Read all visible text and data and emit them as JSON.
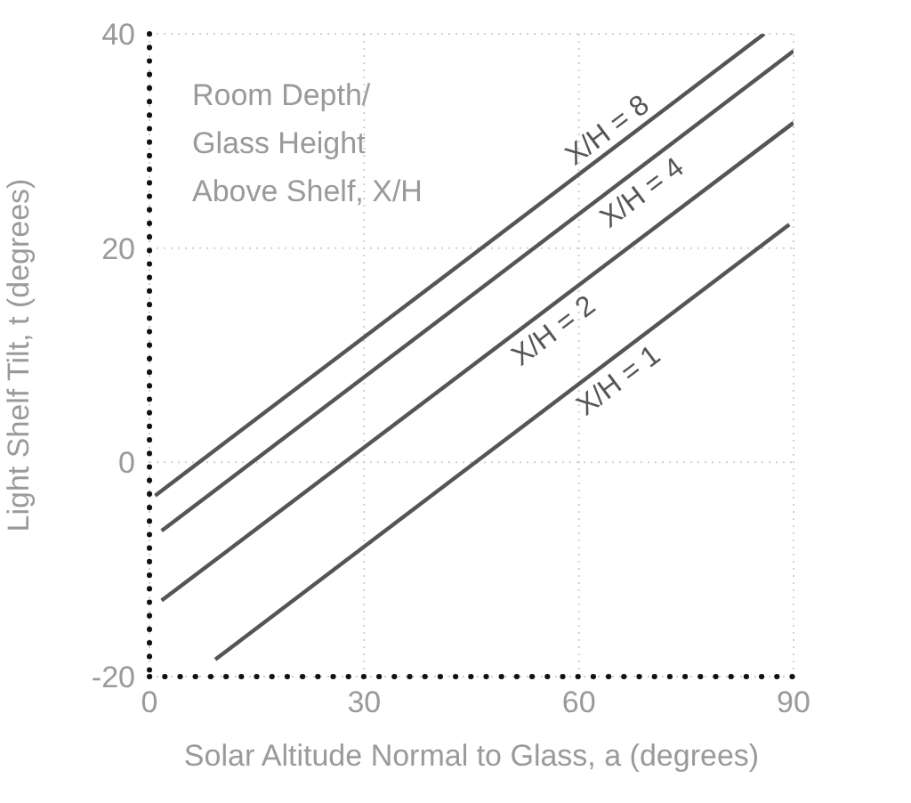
{
  "chart_data": {
    "type": "line",
    "xlabel": "Solar Altitude Normal to Glass,  a  (degrees)",
    "ylabel": "Light Shelf Tilt,  t  (degrees)",
    "legend_title": "Room Depth/ Glass Height Above Shelf, X/H",
    "xlim": [
      0,
      90
    ],
    "xticks": [
      0,
      30,
      60,
      90
    ],
    "ylim": [
      -20,
      40
    ],
    "yticks": [
      -20,
      0,
      20,
      40
    ],
    "grid": true,
    "legend": false,
    "marker": "none",
    "line_style": "solid",
    "series": [
      {
        "name": "X/H = 8",
        "color": "#555555",
        "x": [
          0.8,
          85.9
        ],
        "values": [
          -3.1,
          40
        ]
      },
      {
        "name": "X/H = 4",
        "color": "#555555",
        "x": [
          1.7,
          90
        ],
        "values": [
          -6.4,
          38.4
        ]
      },
      {
        "name": "X/H = 2",
        "color": "#555555",
        "x": [
          1.7,
          90
        ],
        "values": [
          -12.9,
          31.7
        ]
      },
      {
        "name": "X/H = 1",
        "color": "#555555",
        "x": [
          9.2,
          89.4
        ],
        "values": [
          -18.4,
          22.2
        ]
      }
    ]
  }
}
